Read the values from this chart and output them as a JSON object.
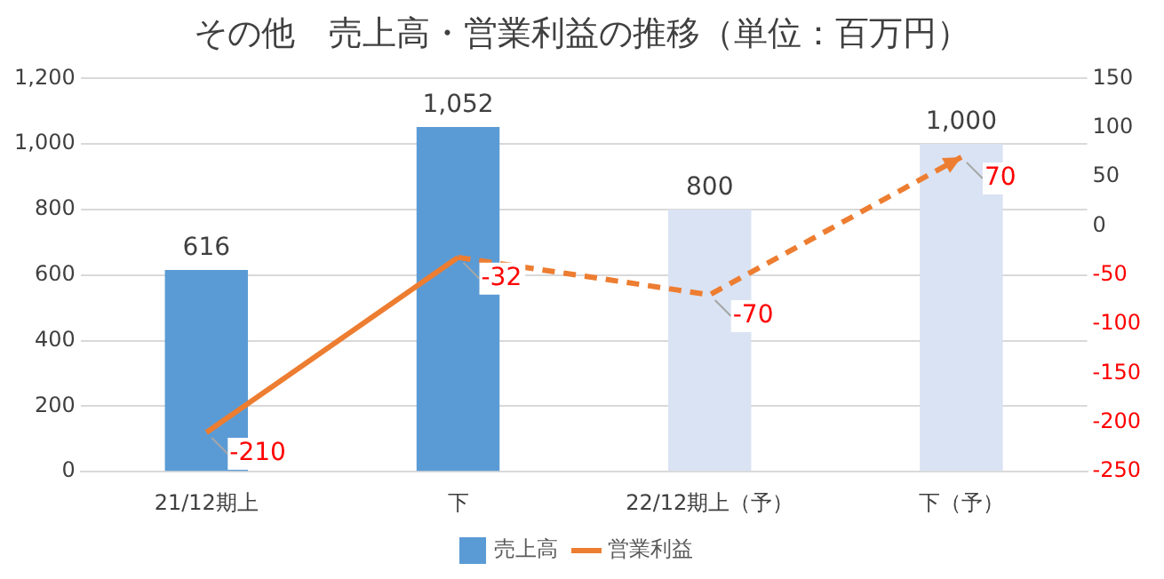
{
  "chart_data": {
    "type": "bar",
    "title": "その他　売上高・営業利益の推移（単位：百万円）",
    "categories": [
      "21/12期上",
      "下",
      "22/12期上（予）",
      "下（予）"
    ],
    "series": [
      {
        "name": "売上高",
        "color": "#5b9bd5",
        "colors": [
          "#5b9bd5",
          "#5b9bd5",
          "#dae3f3",
          "#dae3f3"
        ],
        "values": [
          616,
          1052,
          800,
          1000
        ],
        "value_labels": [
          "616",
          "1,052",
          "800",
          "1,000"
        ]
      },
      {
        "name": "営業利益",
        "type": "line",
        "axis": "y2",
        "color": "#ed7d31",
        "line_style": "solid",
        "values": [
          -210,
          -32,
          null,
          null
        ],
        "value_labels": [
          "-210",
          "-32",
          null,
          null
        ]
      },
      {
        "type": "line",
        "axis": "y2",
        "color": "#ed7d31",
        "line_style": "dashed",
        "values": [
          null,
          -32,
          -70,
          70
        ],
        "value_labels": [
          null,
          null,
          "-70",
          "70"
        ]
      }
    ],
    "ylim": [
      0,
      1200
    ],
    "yticks": [
      0,
      200,
      400,
      600,
      800,
      {
        "value": 1000,
        "label": "1,000"
      },
      {
        "value": 1200,
        "label": "1,200"
      }
    ],
    "y2lim": [
      -250,
      150
    ],
    "y2ticks": [
      -250,
      -200,
      -150,
      -100,
      -50,
      0,
      50,
      100,
      150
    ],
    "grid": "y",
    "legend": "bottom",
    "marker": "none"
  }
}
